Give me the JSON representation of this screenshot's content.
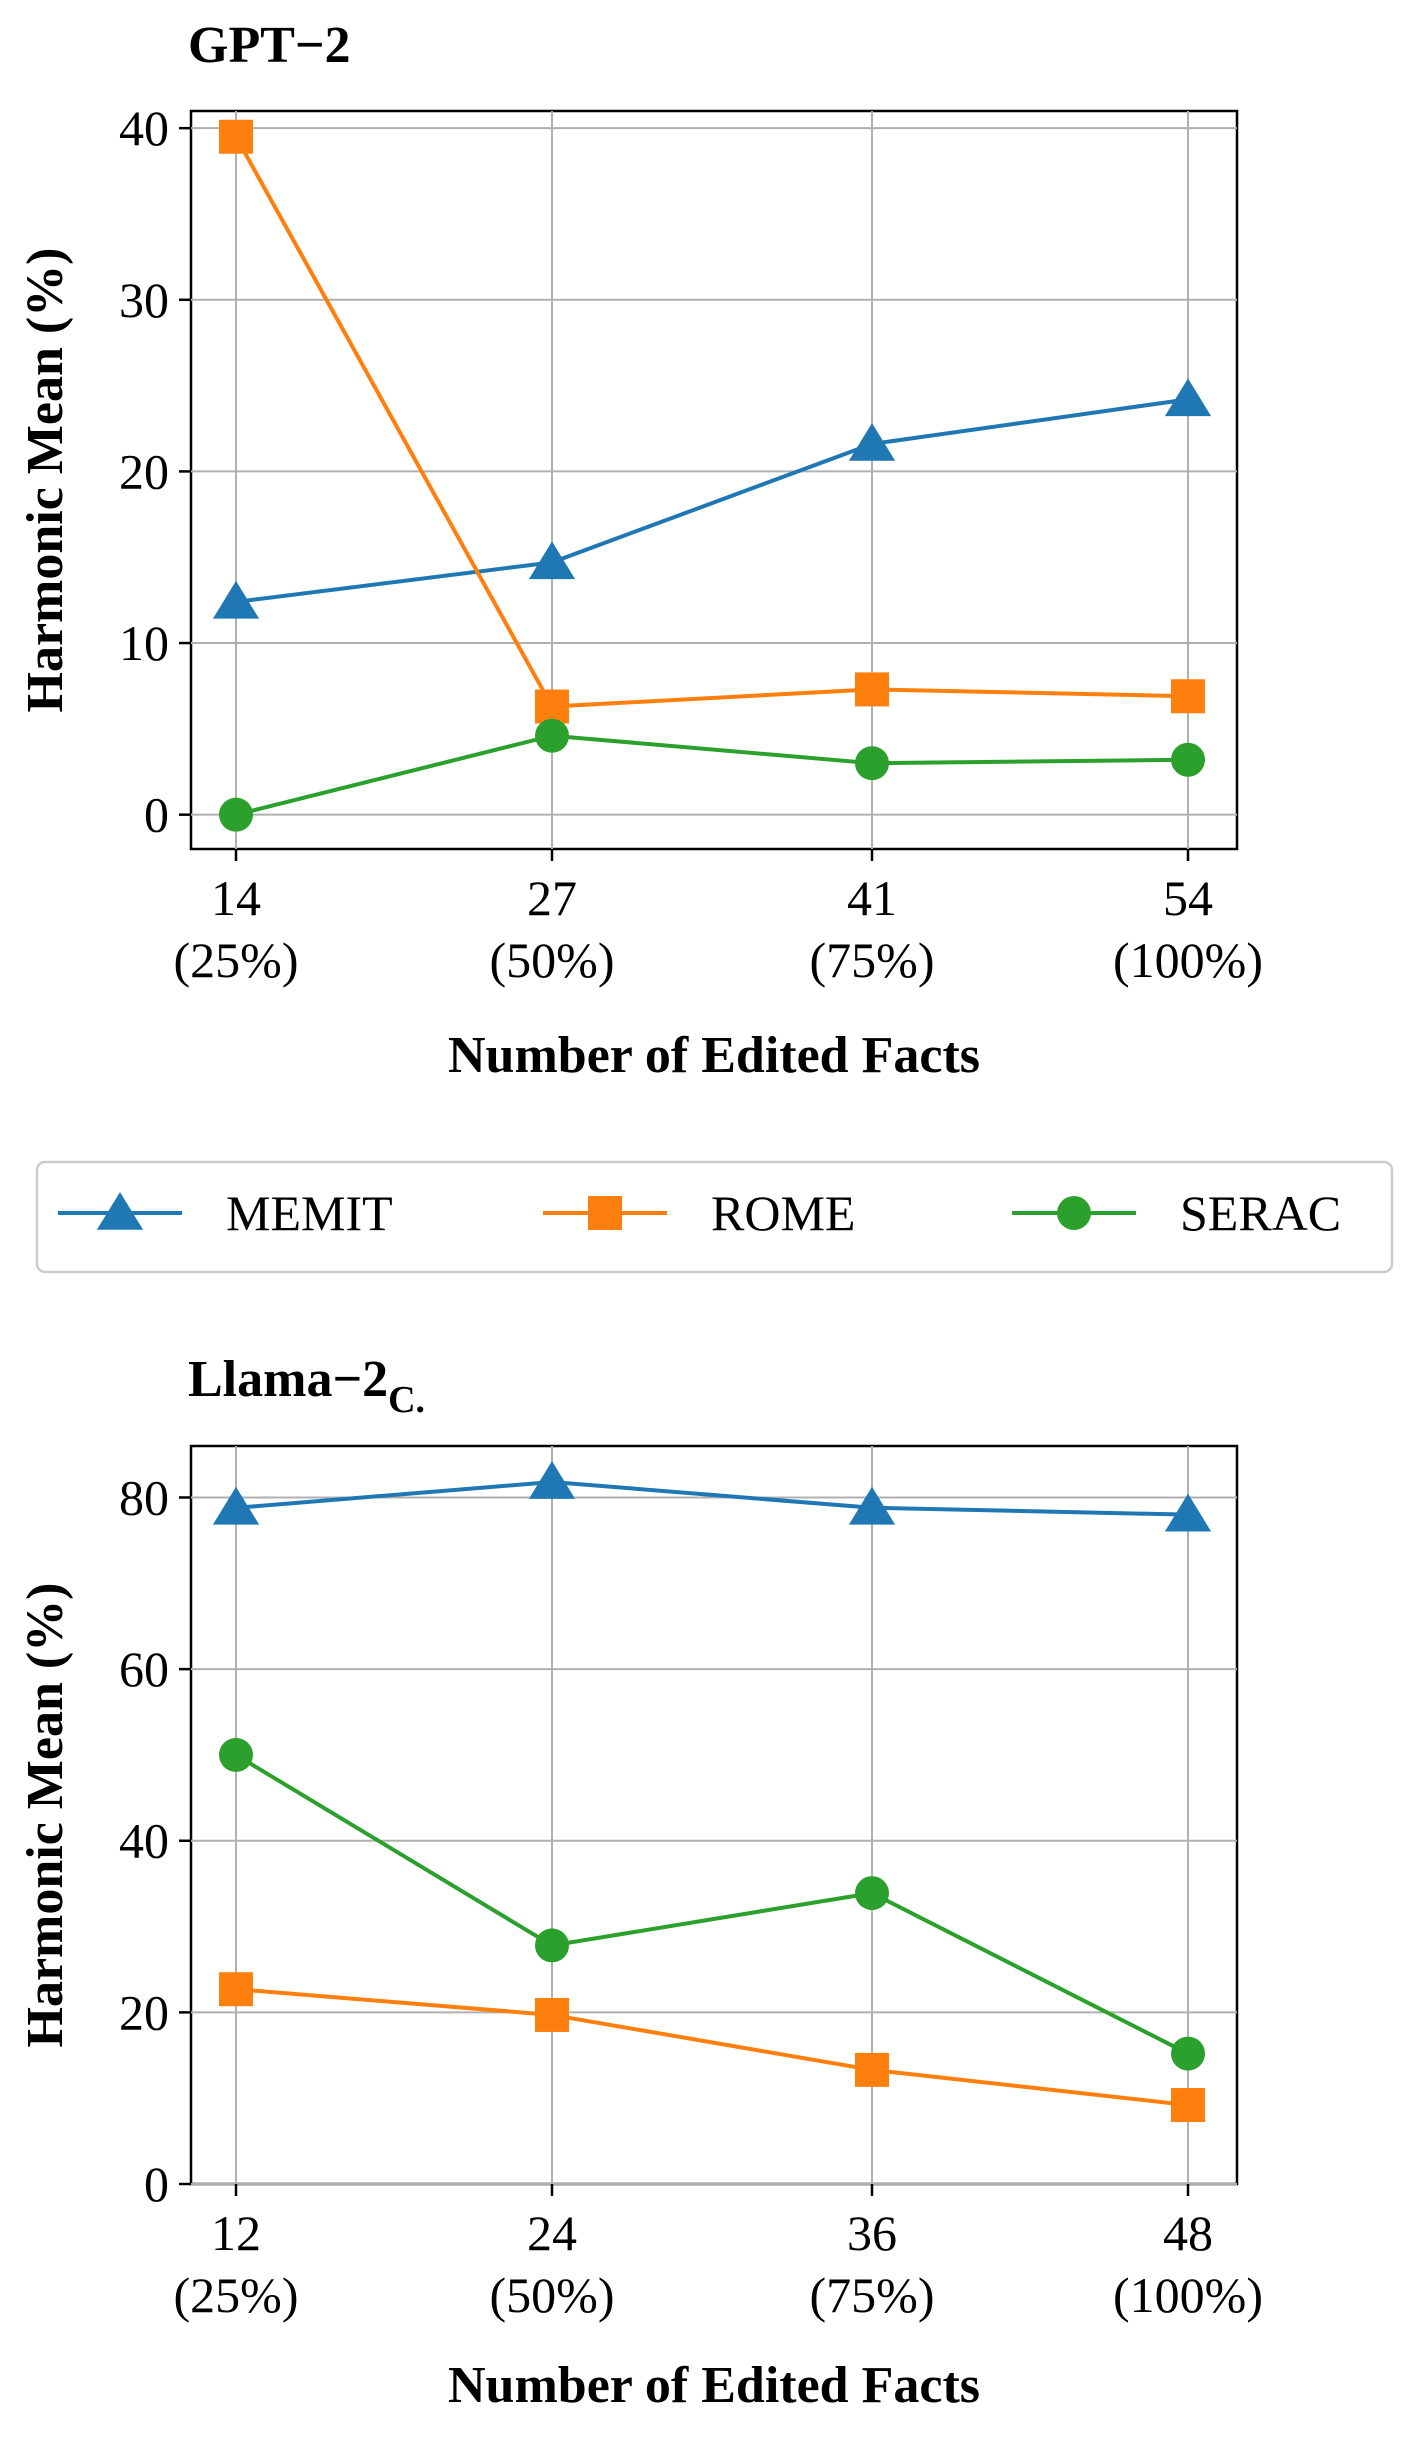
{
  "legend": {
    "entries": [
      {
        "label": "MEMIT",
        "color": "#1f77b4",
        "marker": "triangle"
      },
      {
        "label": "ROME",
        "color": "#ff7f0e",
        "marker": "square"
      },
      {
        "label": "SERAC",
        "color": "#2ca02c",
        "marker": "circle"
      }
    ]
  },
  "chart_data": [
    {
      "type": "line",
      "title": "GPT−2",
      "title_sub": "",
      "xlabel": "Number of Edited Facts",
      "ylabel": "Harmonic Mean (%)",
      "categories": [
        "14\n(25%)",
        "27\n(50%)",
        "41\n(75%)",
        "54\n(100%)"
      ],
      "ylim": [
        -2,
        41
      ],
      "yticks": [
        0,
        10,
        20,
        30,
        40
      ],
      "grid": true,
      "series": [
        {
          "name": "MEMIT",
          "values": [
            12.4,
            14.7,
            21.6,
            24.2
          ]
        },
        {
          "name": "ROME",
          "values": [
            39.5,
            6.3,
            7.3,
            6.9
          ]
        },
        {
          "name": "SERAC",
          "values": [
            0.0,
            4.6,
            3.0,
            3.2
          ]
        }
      ]
    },
    {
      "type": "line",
      "title": "Llama−2",
      "title_sub": "C.",
      "xlabel": "Number of Edited Facts",
      "ylabel": "Harmonic Mean (%)",
      "categories": [
        "12\n(25%)",
        "24\n(50%)",
        "36\n(75%)",
        "48\n(100%)"
      ],
      "ylim": [
        0,
        86
      ],
      "yticks": [
        0,
        20,
        40,
        60,
        80
      ],
      "grid": true,
      "series": [
        {
          "name": "MEMIT",
          "values": [
            78.8,
            81.8,
            78.8,
            78.0
          ]
        },
        {
          "name": "ROME",
          "values": [
            22.7,
            19.7,
            13.3,
            9.2
          ]
        },
        {
          "name": "SERAC",
          "values": [
            50.0,
            27.8,
            33.9,
            15.2
          ]
        }
      ]
    }
  ]
}
